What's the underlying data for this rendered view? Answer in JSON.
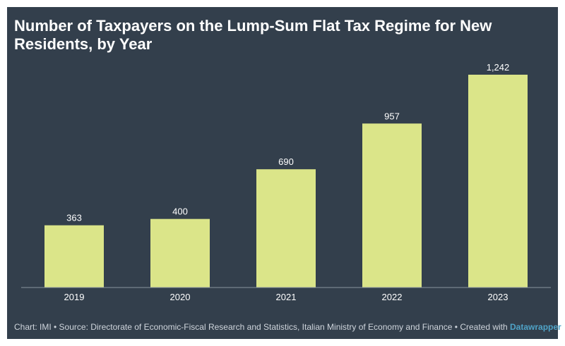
{
  "chart_data": {
    "type": "bar",
    "title": "Number of Taxpayers on the Lump-Sum Flat Tax Regime for New Residents, by Year",
    "categories": [
      "2019",
      "2020",
      "2021",
      "2022",
      "2023"
    ],
    "values": [
      363,
      400,
      690,
      957,
      1242
    ],
    "value_labels": [
      "363",
      "400",
      "690",
      "957",
      "1,242"
    ],
    "xlabel": "",
    "ylabel": "",
    "ylim": [
      0,
      1242
    ],
    "grid": false,
    "legend": "none"
  },
  "footer": {
    "text": "Chart: IMI • Source: Directorate of Economic-Fiscal Research and Statistics, Italian Ministry of Economy and Finance • Created with ",
    "brand": "Datawrapper"
  },
  "colors": {
    "background": "#333f4c",
    "bar": "#dbe589",
    "label": "#ffffff",
    "axis": "#8a949e",
    "brand": "#4fa3c7"
  }
}
